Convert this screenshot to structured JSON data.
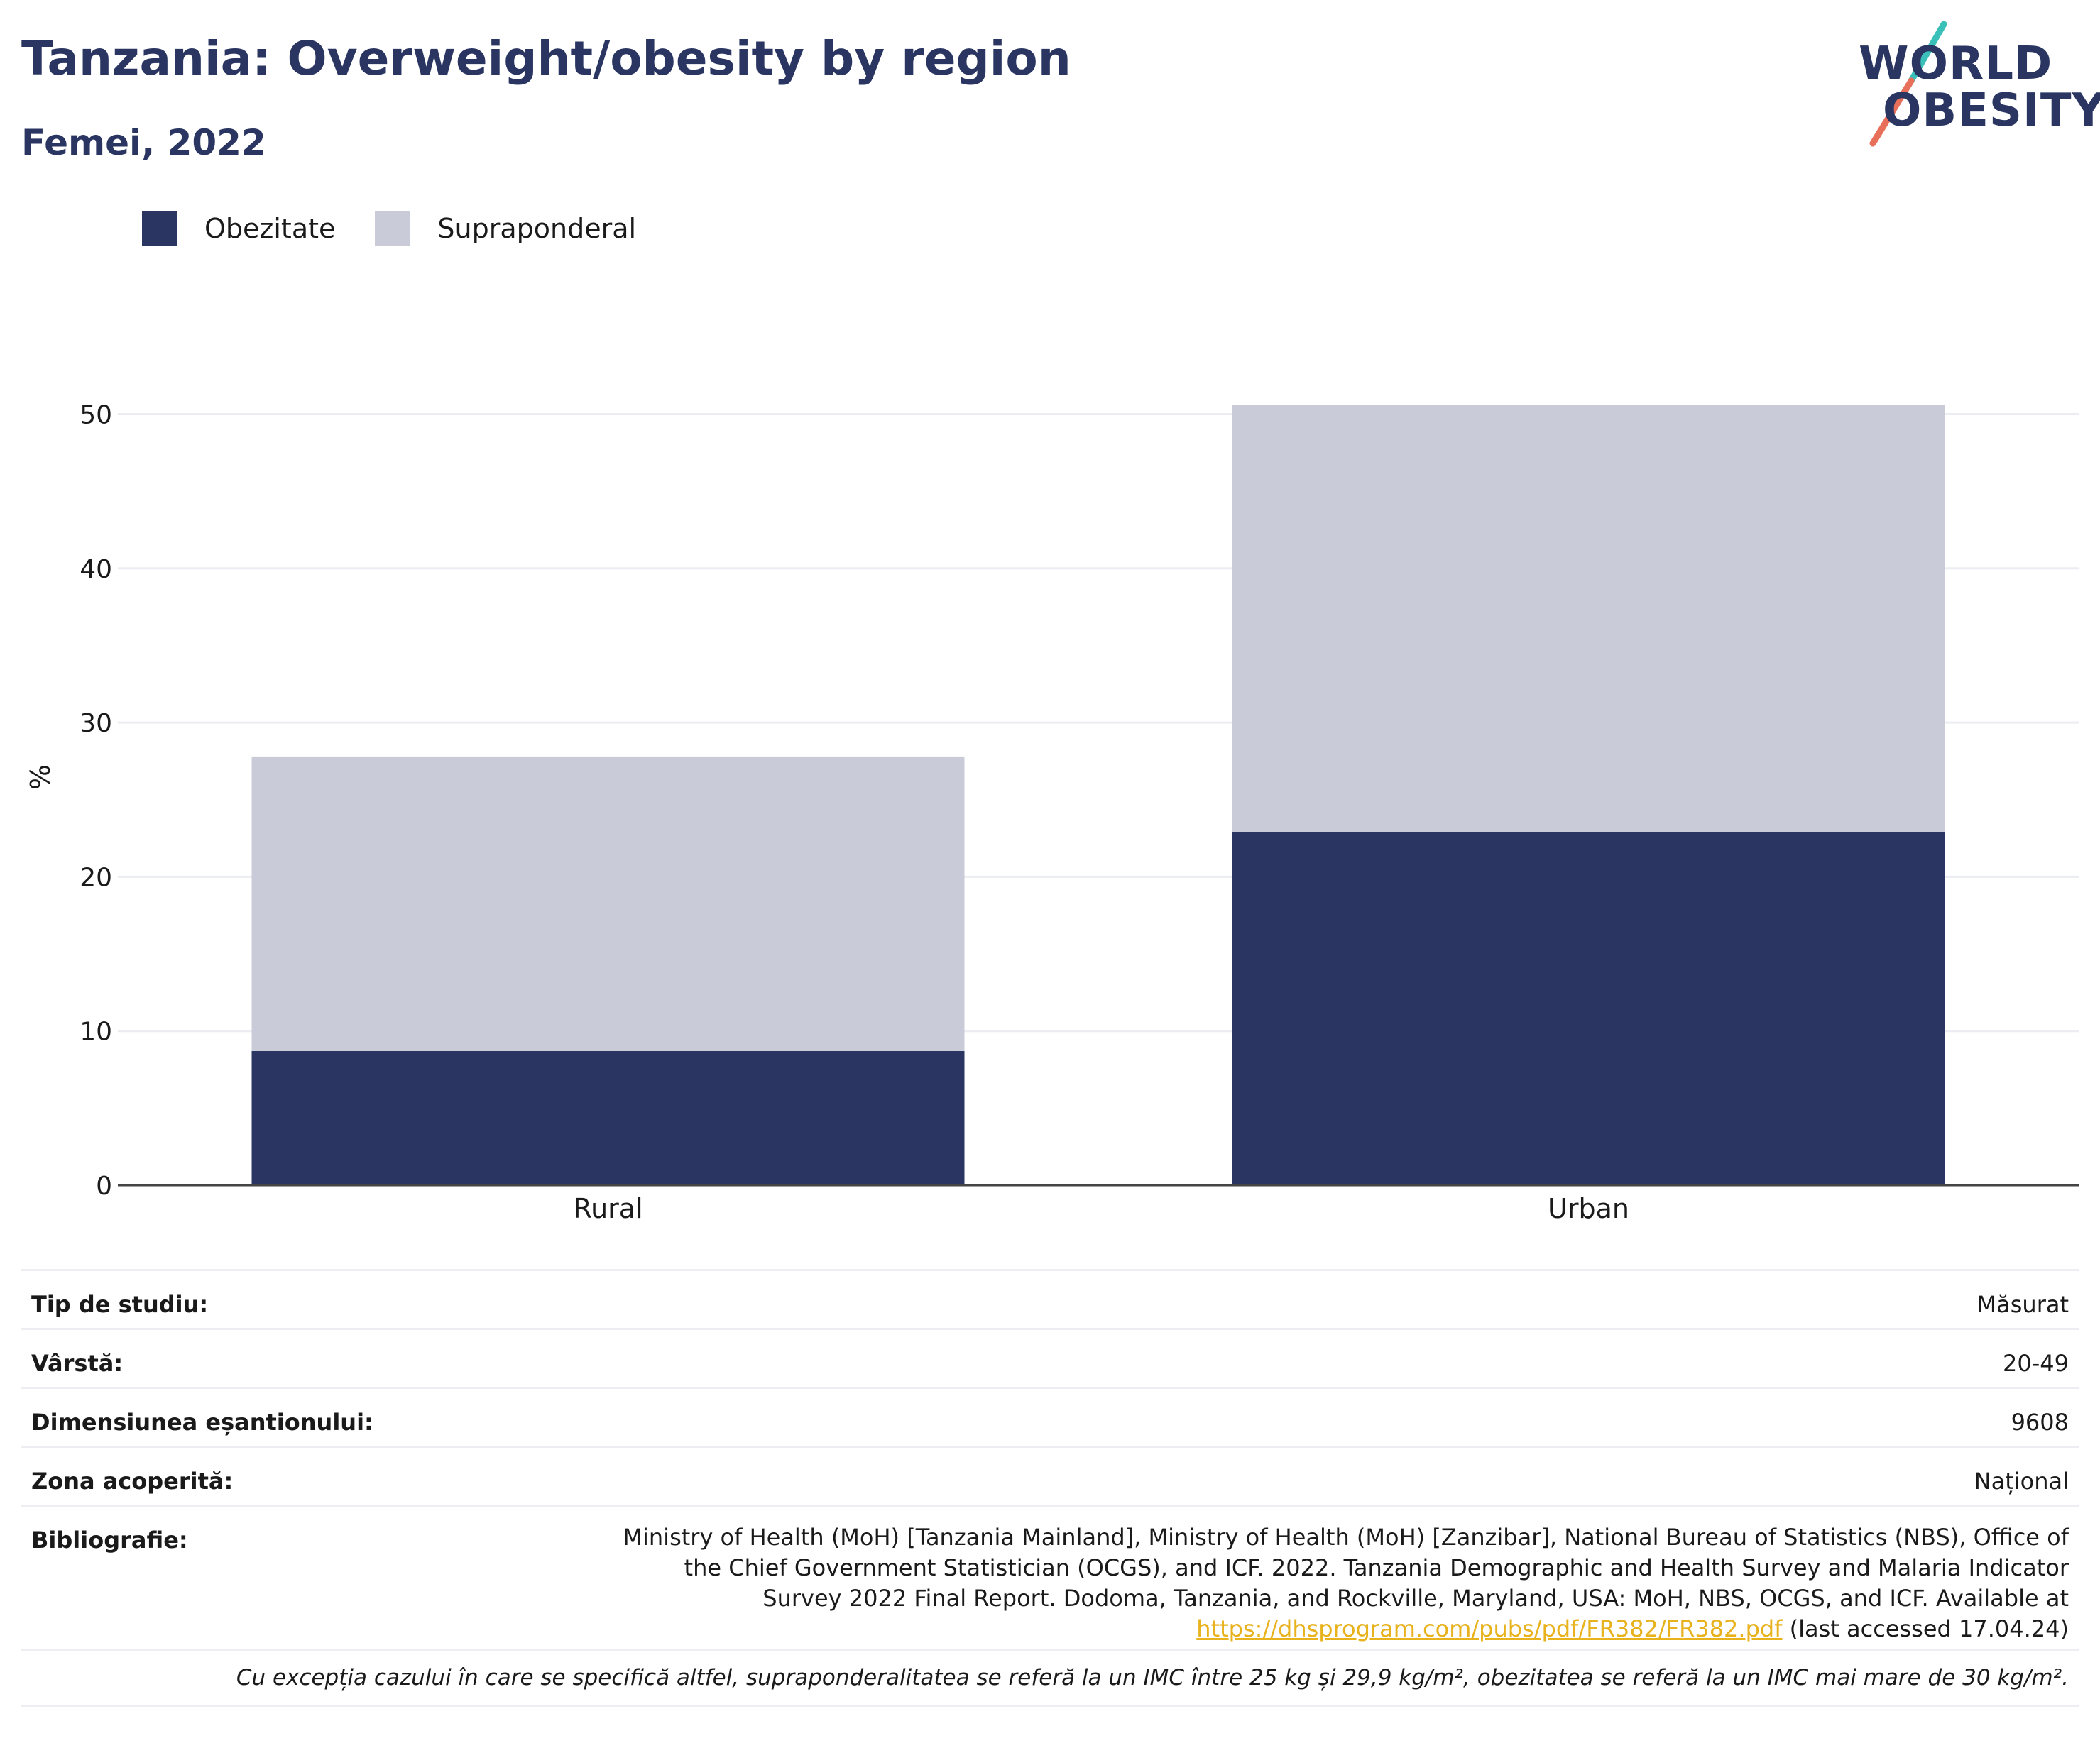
{
  "header": {
    "title": "Tanzania: Overweight/obesity by region",
    "subtitle": "Femei, 2022"
  },
  "logo": {
    "line1": "WORLD",
    "line2": "OBESITY",
    "colors": {
      "text": "#2a3661",
      "slash_top": "#3bbfb9",
      "slash_bottom": "#e8705a"
    }
  },
  "legend": {
    "items": [
      {
        "label": "Obezitate",
        "color": "#2a3661"
      },
      {
        "label": "Supraponderal",
        "color": "#c9ccd8"
      }
    ]
  },
  "chart_data": {
    "type": "bar",
    "stacked": true,
    "categories": [
      "Rural",
      "Urban"
    ],
    "series": [
      {
        "name": "Obezitate",
        "color": "#2a3661",
        "values": [
          8.7,
          22.9
        ]
      },
      {
        "name": "Supraponderal",
        "color": "#c9ccd8",
        "values": [
          19.1,
          27.7
        ]
      }
    ],
    "ylabel": "%",
    "ylim": [
      0,
      52
    ],
    "yticks": [
      0,
      10,
      20,
      30,
      40,
      50
    ],
    "grid": true,
    "legend_position": "top-left"
  },
  "info": {
    "rows": [
      {
        "label": "Tip de studiu:",
        "value": "Măsurat"
      },
      {
        "label": "Vârstă:",
        "value": "20-49"
      },
      {
        "label": "Dimensiunea eșantionului:",
        "value": "9608"
      },
      {
        "label": "Zona acoperită:",
        "value": "Național"
      }
    ],
    "bibliography": {
      "label": "Bibliografie:",
      "text": "Ministry of Health (MoH) [Tanzania Mainland], Ministry of Health (MoH) [Zanzibar], National Bureau of Statistics (NBS), Office of the Chief Government Statistician (OCGS), and ICF. 2022. Tanzania Demographic and Health Survey and Malaria Indicator Survey 2022 Final Report. Dodoma, Tanzania, and Rockville, Maryland, USA: MoH, NBS, OCGS, and ICF. Available at",
      "link": "https://dhsprogram.com/pubs/pdf/FR382/FR382.pdf",
      "suffix": " (last accessed 17.04.24)"
    },
    "note": "Cu excepția cazului în care se specifică altfel, supraponderalitatea se referă la un IMC între 25 kg și 29,9 kg/m², obezitatea se referă la un IMC mai mare de 30 kg/m²."
  }
}
